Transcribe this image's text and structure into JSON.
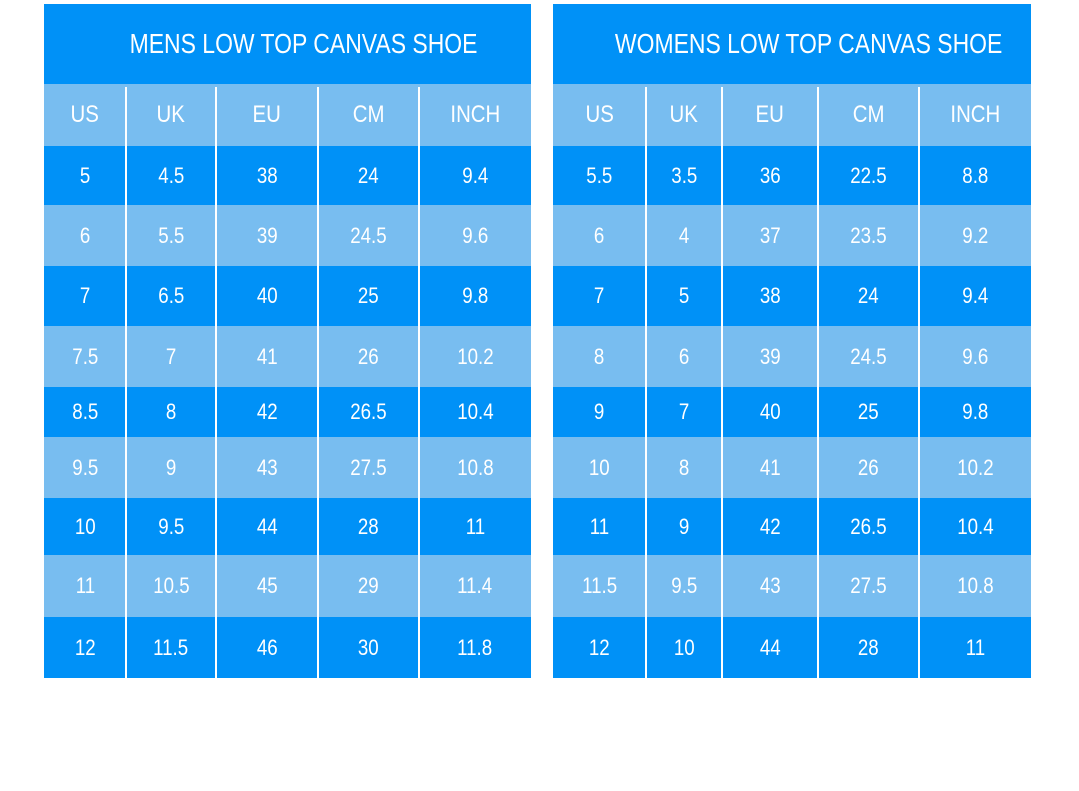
{
  "colors": {
    "dark": "#0091f7",
    "light": "#78bdf0",
    "divider": "#ffffff"
  },
  "tables": [
    {
      "title": "MENS LOW TOP CANVAS SHOE",
      "headers": [
        "US",
        "UK",
        "EU",
        "CM",
        "INCH"
      ],
      "rows": [
        [
          "5",
          "4.5",
          "38",
          "24",
          "9.4"
        ],
        [
          "6",
          "5.5",
          "39",
          "24.5",
          "9.6"
        ],
        [
          "7",
          "6.5",
          "40",
          "25",
          "9.8"
        ],
        [
          "7.5",
          "7",
          "41",
          "26",
          "10.2"
        ],
        [
          "8.5",
          "8",
          "42",
          "26.5",
          "10.4"
        ],
        [
          "9.5",
          "9",
          "43",
          "27.5",
          "10.8"
        ],
        [
          "10",
          "9.5",
          "44",
          "28",
          "11"
        ],
        [
          "11",
          "10.5",
          "45",
          "29",
          "11.4"
        ],
        [
          "12",
          "11.5",
          "46",
          "30",
          "11.8"
        ]
      ]
    },
    {
      "title": "WOMENS LOW TOP CANVAS SHOE",
      "headers": [
        "US",
        "UK",
        "EU",
        "CM",
        "INCH"
      ],
      "rows": [
        [
          "5.5",
          "3.5",
          "36",
          "22.5",
          "8.8"
        ],
        [
          "6",
          "4",
          "37",
          "23.5",
          "9.2"
        ],
        [
          "7",
          "5",
          "38",
          "24",
          "9.4"
        ],
        [
          "8",
          "6",
          "39",
          "24.5",
          "9.6"
        ],
        [
          "9",
          "7",
          "40",
          "25",
          "9.8"
        ],
        [
          "10",
          "8",
          "41",
          "26",
          "10.2"
        ],
        [
          "11",
          "9",
          "42",
          "26.5",
          "10.4"
        ],
        [
          "11.5",
          "9.5",
          "43",
          "27.5",
          "10.8"
        ],
        [
          "12",
          "10",
          "44",
          "28",
          "11"
        ]
      ]
    }
  ]
}
